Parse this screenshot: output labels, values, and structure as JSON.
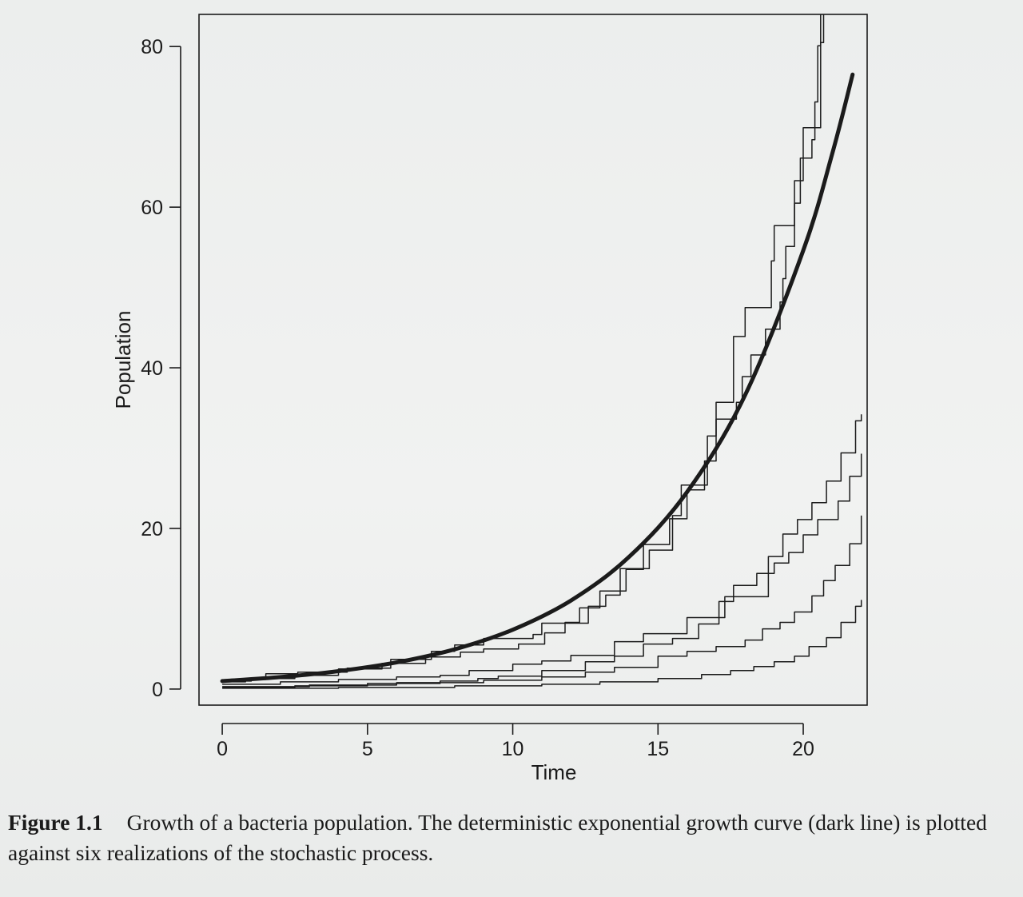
{
  "caption": {
    "label": "Figure 1.1",
    "text": "Growth of a bacteria population. The deterministic exponential growth curve (dark line) is plotted against six realizations of the stochastic process."
  },
  "chart_data": {
    "type": "line",
    "title": "",
    "xlabel": "Time",
    "ylabel": "Population",
    "xlim": [
      -0.8,
      22.2
    ],
    "ylim": [
      -2,
      84
    ],
    "xticks": [
      0,
      5,
      10,
      15,
      20
    ],
    "yticks": [
      0,
      20,
      40,
      60,
      80
    ],
    "grid": false,
    "legend": "none",
    "colors": {
      "line": "#1b1b1b",
      "axis": "#1b1b1b"
    },
    "deterministic": {
      "function": "exp(0.2*t)",
      "points": [
        [
          0,
          1
        ],
        [
          2,
          1.49
        ],
        [
          4,
          2.23
        ],
        [
          6,
          3.32
        ],
        [
          8,
          4.95
        ],
        [
          10,
          7.39
        ],
        [
          12,
          11.02
        ],
        [
          14,
          16.44
        ],
        [
          16,
          24.53
        ],
        [
          18,
          36.6
        ],
        [
          20,
          54.6
        ],
        [
          21,
          66.69
        ],
        [
          21.7,
          76.5
        ]
      ]
    },
    "series": [
      {
        "values": [
          [
            0,
            0.9
          ],
          [
            0.8,
            1.2
          ],
          [
            1.5,
            1.9
          ],
          [
            2.6,
            2.1
          ],
          [
            4.3,
            2.6
          ],
          [
            5.8,
            3.7
          ],
          [
            7.2,
            4.7
          ],
          [
            8.0,
            5.5
          ],
          [
            9.0,
            6.3
          ],
          [
            10.7,
            6.8
          ],
          [
            11.0,
            8.2
          ],
          [
            12.6,
            10.3
          ],
          [
            13.2,
            11.7
          ],
          [
            13.7,
            15.0
          ],
          [
            14.7,
            17.3
          ],
          [
            15.5,
            21.6
          ],
          [
            15.8,
            25.4
          ],
          [
            16.7,
            31.5
          ],
          [
            17.0,
            35.7
          ],
          [
            17.6,
            43.9
          ],
          [
            18.0,
            47.5
          ],
          [
            18.9,
            53.3
          ],
          [
            19.0,
            57.7
          ],
          [
            19.7,
            63.3
          ],
          [
            20.0,
            69.9
          ],
          [
            20.6,
            80.5
          ],
          [
            20.7,
            84.0
          ]
        ]
      },
      {
        "values": [
          [
            0,
            1.0
          ],
          [
            1.0,
            1.3
          ],
          [
            2.5,
            1.7
          ],
          [
            4.0,
            2.5
          ],
          [
            5.5,
            3.2
          ],
          [
            7.0,
            4.0
          ],
          [
            8.2,
            4.6
          ],
          [
            9.0,
            5.0
          ],
          [
            10.2,
            5.6
          ],
          [
            11.1,
            7.0
          ],
          [
            11.8,
            8.3
          ],
          [
            12.3,
            10.1
          ],
          [
            13.0,
            12.2
          ],
          [
            13.9,
            14.9
          ],
          [
            14.5,
            18.0
          ],
          [
            15.4,
            21.2
          ],
          [
            16.0,
            24.8
          ],
          [
            16.6,
            28.4
          ],
          [
            17.0,
            33.6
          ],
          [
            17.7,
            35.7
          ],
          [
            17.9,
            38.9
          ],
          [
            18.2,
            41.6
          ],
          [
            18.7,
            44.8
          ],
          [
            19.2,
            48.2
          ],
          [
            19.3,
            51.1
          ],
          [
            19.4,
            55.1
          ],
          [
            19.7,
            60.5
          ],
          [
            19.9,
            66.1
          ],
          [
            20.3,
            68.4
          ],
          [
            20.4,
            73.1
          ],
          [
            20.5,
            80.1
          ],
          [
            20.6,
            84.0
          ]
        ]
      },
      {
        "values": [
          [
            0,
            0.6
          ],
          [
            2.0,
            0.9
          ],
          [
            4.0,
            1.2
          ],
          [
            6.0,
            1.5
          ],
          [
            7.5,
            1.7
          ],
          [
            8.5,
            2.3
          ],
          [
            10.0,
            3.1
          ],
          [
            11.0,
            3.5
          ],
          [
            12.0,
            4.2
          ],
          [
            13.5,
            5.9
          ],
          [
            14.5,
            6.9
          ],
          [
            16.0,
            8.9
          ],
          [
            17.3,
            11.5
          ],
          [
            18.8,
            16.5
          ],
          [
            19.3,
            19.3
          ],
          [
            19.8,
            21.1
          ],
          [
            20.3,
            23.2
          ],
          [
            20.8,
            25.9
          ],
          [
            21.3,
            29.4
          ],
          [
            21.8,
            33.4
          ],
          [
            22.0,
            34.2
          ]
        ]
      },
      {
        "values": [
          [
            0,
            0.2
          ],
          [
            2.5,
            0.4
          ],
          [
            5.0,
            0.7
          ],
          [
            7.5,
            1.0
          ],
          [
            8.8,
            1.3
          ],
          [
            9.5,
            1.6
          ],
          [
            11.0,
            2.3
          ],
          [
            12.5,
            3.4
          ],
          [
            13.5,
            4.1
          ],
          [
            14.5,
            5.6
          ],
          [
            15.5,
            6.3
          ],
          [
            16.4,
            8.1
          ],
          [
            17.1,
            10.9
          ],
          [
            17.6,
            12.9
          ],
          [
            18.4,
            14.4
          ],
          [
            19.0,
            15.7
          ],
          [
            19.5,
            17.0
          ],
          [
            20.0,
            19.2
          ],
          [
            20.5,
            21.1
          ],
          [
            21.2,
            23.4
          ],
          [
            21.6,
            26.5
          ],
          [
            22.0,
            29.3
          ]
        ]
      },
      {
        "values": [
          [
            0,
            0.3
          ],
          [
            3.0,
            0.5
          ],
          [
            6.0,
            0.8
          ],
          [
            9.0,
            1.1
          ],
          [
            11.0,
            1.5
          ],
          [
            12.5,
            2.1
          ],
          [
            13.5,
            2.7
          ],
          [
            15.0,
            4.1
          ],
          [
            16.0,
            4.7
          ],
          [
            17.0,
            5.3
          ],
          [
            18.0,
            6.1
          ],
          [
            18.6,
            7.5
          ],
          [
            19.2,
            8.3
          ],
          [
            19.7,
            9.6
          ],
          [
            20.3,
            11.6
          ],
          [
            20.7,
            13.5
          ],
          [
            21.1,
            15.4
          ],
          [
            21.6,
            18.1
          ],
          [
            22.0,
            21.6
          ]
        ]
      },
      {
        "values": [
          [
            0,
            0.1
          ],
          [
            4.0,
            0.2
          ],
          [
            8.0,
            0.4
          ],
          [
            11.0,
            0.6
          ],
          [
            13.0,
            0.9
          ],
          [
            15.0,
            1.3
          ],
          [
            16.5,
            1.8
          ],
          [
            17.5,
            2.3
          ],
          [
            18.3,
            2.8
          ],
          [
            19.0,
            3.4
          ],
          [
            19.7,
            4.1
          ],
          [
            20.2,
            5.3
          ],
          [
            20.8,
            6.4
          ],
          [
            21.3,
            8.3
          ],
          [
            21.8,
            10.3
          ],
          [
            22.0,
            11.1
          ]
        ]
      }
    ]
  }
}
